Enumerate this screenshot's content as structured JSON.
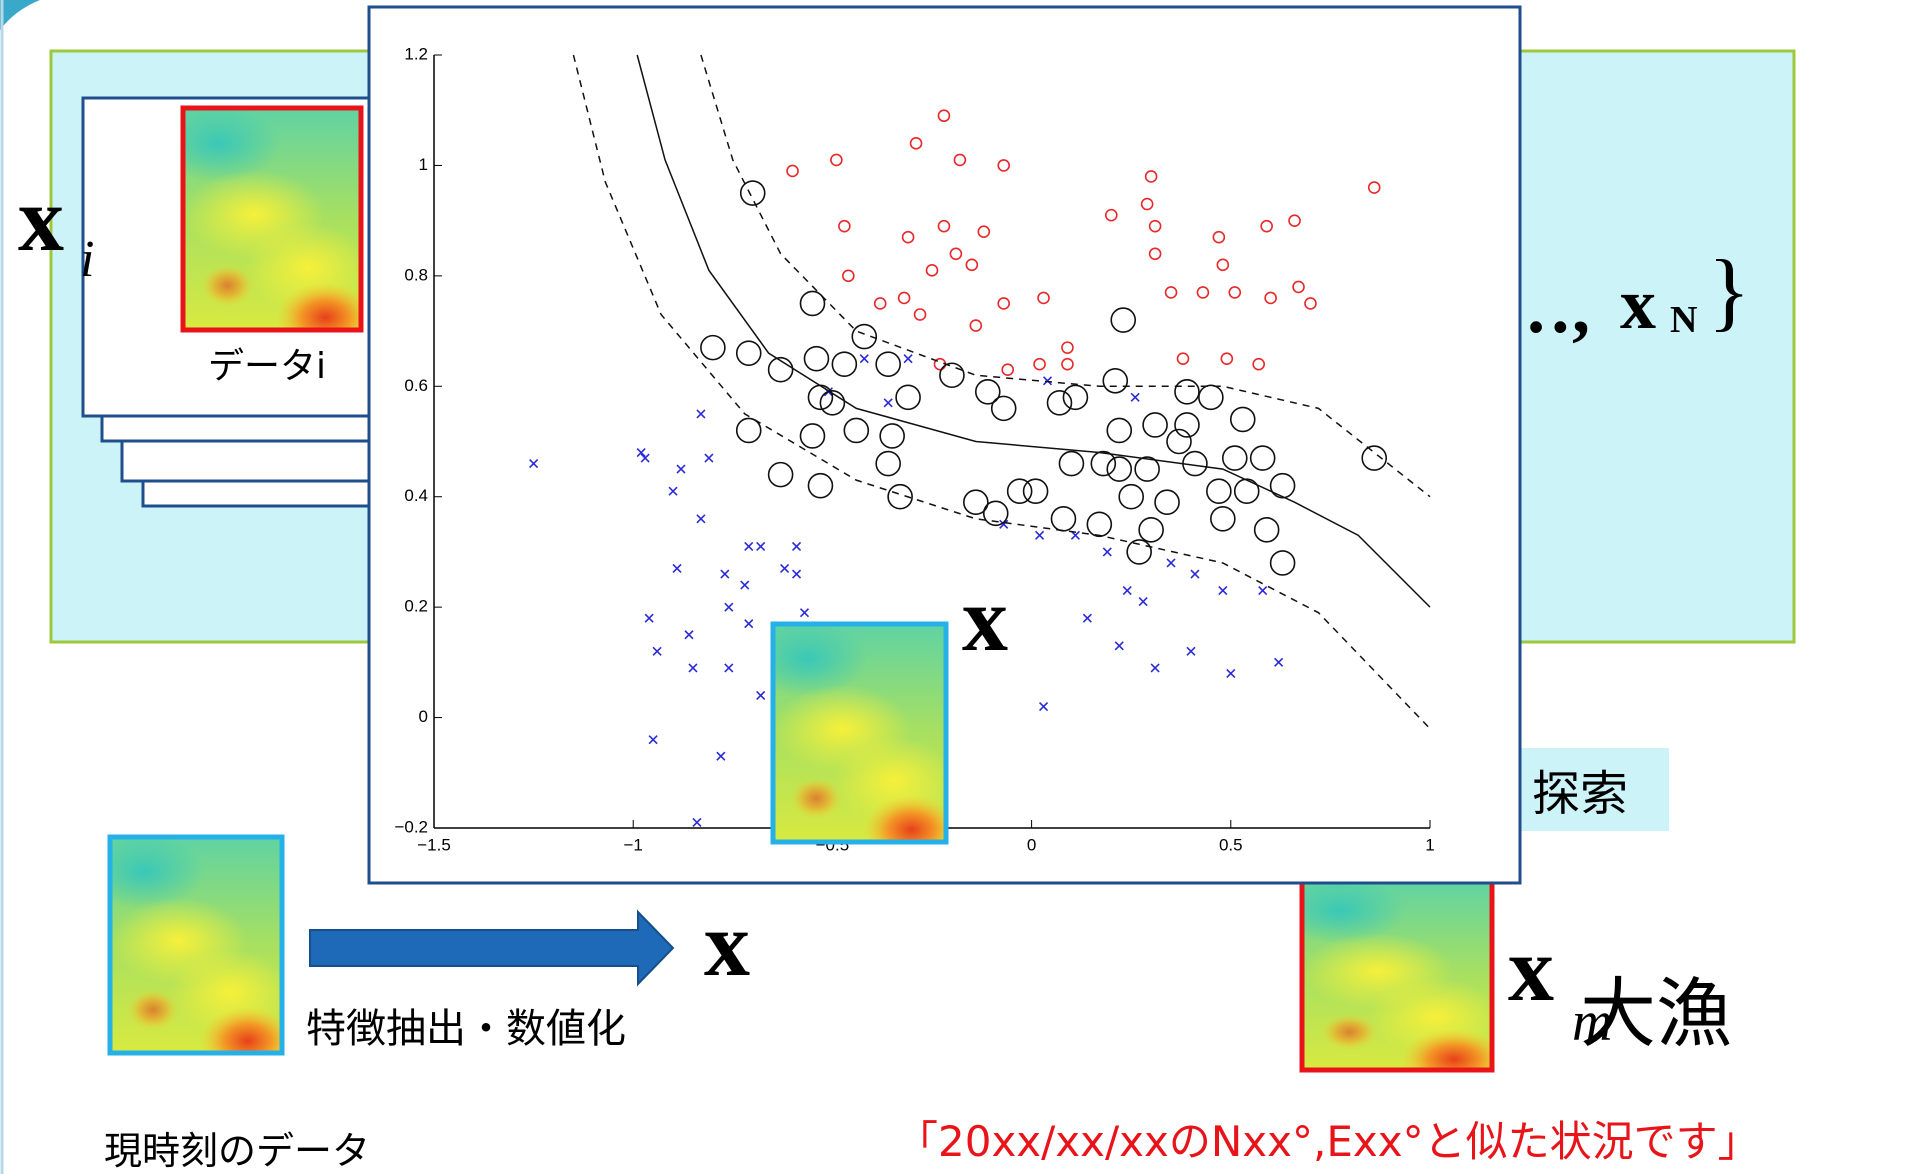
{
  "slide": {
    "data_label": "データi",
    "feature_label": "特徴抽出・数値化",
    "current_label": "現時刻のデータ",
    "result_message": "「20xx/xx/xxのNxx°,Exx°と似た状況です」",
    "search_label": "探索",
    "catch_label": "大漁",
    "x_symbol": "x",
    "i_sub": "i",
    "n_sub": "N",
    "m_sub": "m",
    "ellipsis": "…,",
    "brace": "}"
  },
  "chart_data": {
    "type": "scatter",
    "xlim": [
      -1.5,
      1
    ],
    "ylim": [
      -0.2,
      1.2
    ],
    "xticks": [
      {
        "value": -1.5,
        "label": "−1.5"
      },
      {
        "value": -1,
        "label": "−1"
      },
      {
        "value": -0.5,
        "label": "−0.5"
      },
      0,
      0.5,
      1
    ],
    "yticks": [
      {
        "value": -0.2,
        "label": "−0.2"
      },
      0,
      0.2,
      0.4,
      0.6,
      0.8,
      1,
      1.2
    ],
    "series": [
      {
        "marker": "circle",
        "color": "#e8282a",
        "x": [
          -0.22,
          -0.49,
          -0.29,
          -0.18,
          -0.07,
          -0.6,
          -0.47,
          -0.31,
          -0.22,
          -0.12,
          -0.19,
          -0.25,
          -0.15,
          -0.46,
          -0.38,
          -0.32,
          -0.28,
          -0.14,
          -0.07,
          0.03,
          0.09,
          -0.06,
          -0.23,
          0.3,
          0.29,
          0.2,
          0.31,
          0.31,
          0.47,
          0.59,
          0.66,
          0.48,
          0.86,
          0.35,
          0.43,
          0.51,
          0.6,
          0.67,
          0.7,
          0.38,
          0.49,
          0.57,
          0.09,
          0.02
        ],
        "values": [
          1.09,
          1.01,
          1.04,
          1.01,
          1.0,
          0.99,
          0.89,
          0.87,
          0.89,
          0.88,
          0.84,
          0.81,
          0.82,
          0.8,
          0.75,
          0.76,
          0.73,
          0.71,
          0.75,
          0.76,
          0.67,
          0.63,
          0.64,
          0.98,
          0.93,
          0.91,
          0.89,
          0.84,
          0.87,
          0.89,
          0.9,
          0.82,
          0.96,
          0.77,
          0.77,
          0.77,
          0.76,
          0.78,
          0.75,
          0.65,
          0.65,
          0.64,
          0.64,
          0.64
        ]
      },
      {
        "marker": "cross",
        "color": "#2a2ad8",
        "x": [
          -1.25,
          -0.98,
          -0.97,
          -0.83,
          -0.81,
          -0.88,
          -0.9,
          -0.83,
          -0.71,
          -0.68,
          -0.59,
          -0.89,
          -0.77,
          -0.72,
          -0.62,
          -0.59,
          -0.96,
          -0.86,
          -0.94,
          -0.85,
          -0.76,
          -0.76,
          -0.57,
          -0.71,
          -0.68,
          -0.95,
          -0.78,
          -0.84,
          0.03,
          0.14,
          0.22,
          0.31,
          0.4,
          0.5,
          0.62,
          0.28,
          0.24,
          0.48,
          0.58,
          0.35,
          0.41,
          0.19,
          -0.07,
          0.02,
          0.11,
          0.26,
          0.04,
          -0.31,
          -0.36,
          -0.42,
          -0.51
        ],
        "values": [
          0.46,
          0.48,
          0.47,
          0.55,
          0.47,
          0.45,
          0.41,
          0.36,
          0.31,
          0.31,
          0.31,
          0.27,
          0.26,
          0.24,
          0.27,
          0.26,
          0.18,
          0.15,
          0.12,
          0.09,
          0.09,
          0.2,
          0.19,
          0.17,
          0.04,
          -0.04,
          -0.07,
          -0.19,
          0.02,
          0.18,
          0.13,
          0.09,
          0.12,
          0.08,
          0.1,
          0.21,
          0.23,
          0.23,
          0.23,
          0.28,
          0.26,
          0.3,
          0.35,
          0.33,
          0.33,
          0.58,
          0.61,
          0.65,
          0.57,
          0.65,
          0.59
        ]
      },
      {
        "marker": "ring",
        "color": "#111111",
        "x": [
          -0.7,
          -0.55,
          -0.8,
          -0.71,
          -0.63,
          -0.54,
          -0.53,
          -0.5,
          -0.47,
          -0.42,
          -0.36,
          -0.31,
          -0.2,
          -0.11,
          -0.07,
          -0.55,
          -0.44,
          -0.35,
          -0.71,
          -0.36,
          -0.63,
          -0.53,
          -0.33,
          -0.14,
          -0.09,
          -0.03,
          0.01,
          0.08,
          0.07,
          0.11,
          0.21,
          0.23,
          0.39,
          0.45,
          0.31,
          0.22,
          0.37,
          0.53,
          0.1,
          0.18,
          0.22,
          0.29,
          0.41,
          0.51,
          0.58,
          0.86,
          0.25,
          0.34,
          0.47,
          0.54,
          0.63,
          0.17,
          0.3,
          0.48,
          0.59,
          0.27,
          0.63,
          0.39
        ],
        "values": [
          0.95,
          0.75,
          0.67,
          0.66,
          0.63,
          0.65,
          0.58,
          0.57,
          0.64,
          0.69,
          0.64,
          0.58,
          0.62,
          0.59,
          0.56,
          0.51,
          0.52,
          0.51,
          0.52,
          0.46,
          0.44,
          0.42,
          0.4,
          0.39,
          0.37,
          0.41,
          0.41,
          0.36,
          0.57,
          0.58,
          0.61,
          0.72,
          0.59,
          0.58,
          0.53,
          0.52,
          0.5,
          0.54,
          0.46,
          0.46,
          0.45,
          0.45,
          0.46,
          0.47,
          0.47,
          0.47,
          0.4,
          0.39,
          0.41,
          0.41,
          0.42,
          0.35,
          0.34,
          0.36,
          0.34,
          0.3,
          0.28,
          0.53
        ]
      },
      {
        "marker": "line",
        "color": "#111111",
        "x": [
          -0.99,
          -0.92,
          -0.81,
          -0.66,
          -0.44,
          -0.14,
          0.17,
          0.48,
          0.66,
          0.82,
          1.0
        ],
        "values": [
          1.2,
          1.01,
          0.81,
          0.66,
          0.56,
          0.5,
          0.48,
          0.45,
          0.39,
          0.33,
          0.2
        ]
      },
      {
        "marker": "dashed",
        "color": "#111111",
        "x": [
          -0.83,
          -0.75,
          -0.63,
          -0.44,
          -0.14,
          0.17,
          0.48,
          0.72,
          1.0
        ],
        "values": [
          1.2,
          1.01,
          0.84,
          0.7,
          0.62,
          0.6,
          0.6,
          0.56,
          0.4
        ]
      },
      {
        "marker": "dashed",
        "color": "#111111",
        "x": [
          -1.15,
          -1.07,
          -0.93,
          -0.72,
          -0.44,
          -0.14,
          0.17,
          0.48,
          0.72,
          1.0
        ],
        "values": [
          1.2,
          0.97,
          0.73,
          0.55,
          0.43,
          0.36,
          0.33,
          0.28,
          0.19,
          -0.02
        ]
      }
    ]
  }
}
